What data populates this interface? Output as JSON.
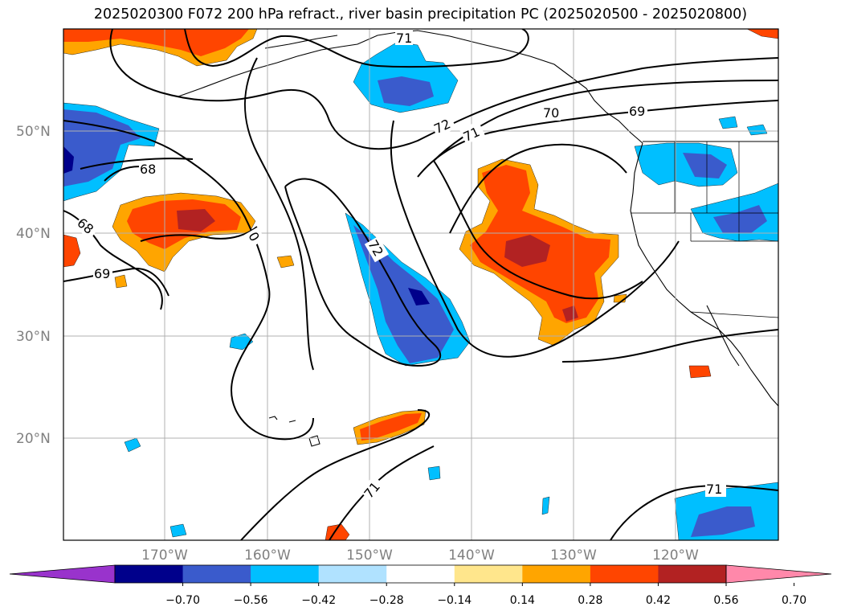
{
  "title": "2025020300 F072 200 hPa refract., river basin precipitation PC (2025020500 - 2025020800)",
  "lat_labels": [
    "50°N",
    "40°N",
    "30°N",
    "20°N"
  ],
  "lon_labels": [
    "170°W",
    "160°W",
    "150°W",
    "140°W",
    "130°W",
    "120°W"
  ],
  "contour_labels": [
    "71",
    "72",
    "71",
    "70",
    "69",
    "68",
    "68",
    "69",
    "0",
    "72",
    "71",
    "71"
  ],
  "colorbar": {
    "ticks": [
      "−0.70",
      "−0.56",
      "−0.42",
      "−0.28",
      "−0.14",
      "0.14",
      "0.28",
      "0.42",
      "0.56",
      "0.70"
    ],
    "colors": [
      "#9933cc",
      "#00008b",
      "#3a5bcc",
      "#00bfff",
      "#b0e2ff",
      "#ffffff",
      "#ffe68c",
      "#ffa500",
      "#ff4500",
      "#b22222",
      "#ff88aa"
    ]
  },
  "colors": {
    "dark_blue": "#00008b",
    "blue": "#3a5bcc",
    "light_blue": "#00bfff",
    "pale_blue": "#b0e2ff",
    "yellow": "#ffe68c",
    "orange": "#ffa500",
    "red_orange": "#ff4500",
    "dark_red": "#b22222",
    "contour": "#000000",
    "grid": "#b0b0b0",
    "label_gray": "#808080"
  }
}
